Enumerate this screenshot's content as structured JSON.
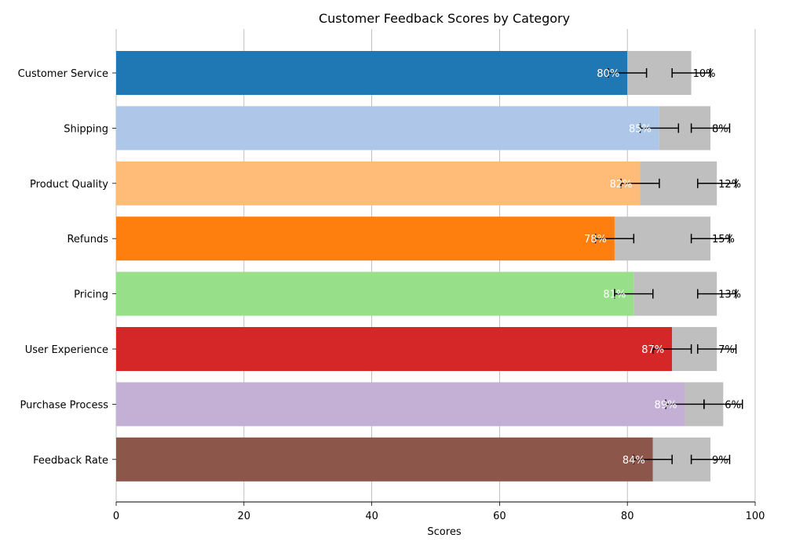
{
  "chart_data": {
    "type": "bar",
    "orientation": "horizontal",
    "stacked": true,
    "title": "Customer Feedback Scores by Category",
    "xlabel": "Scores",
    "ylabel": "",
    "xlim": [
      0,
      100
    ],
    "xticks": [
      0,
      20,
      40,
      60,
      80,
      100
    ],
    "grid": "vertical",
    "categories": [
      "Customer Service",
      "Shipping",
      "Product Quality",
      "Refunds",
      "Pricing",
      "User Experience",
      "Purchase Process",
      "Feedback Rate"
    ],
    "series": [
      {
        "values": [
          80,
          85,
          82,
          78,
          81,
          87,
          89,
          84
        ],
        "labels": [
          "80%",
          "85%",
          "82%",
          "78%",
          "81%",
          "87%",
          "89%",
          "84%"
        ],
        "colors": [
          "#1f77b4",
          "#aec7e8",
          "#ffbb78",
          "#ff7f0e",
          "#98df8a",
          "#d62728",
          "#c5b0d5",
          "#8c564b"
        ],
        "error": [
          3,
          3,
          3,
          3,
          3,
          3,
          3,
          3
        ]
      },
      {
        "values": [
          10,
          8,
          12,
          15,
          13,
          7,
          6,
          9
        ],
        "labels": [
          "10%",
          "8%",
          "12%",
          "15%",
          "13%",
          "7%",
          "6%",
          "9%"
        ],
        "color": "#bfbfbf",
        "error": [
          3,
          3,
          3,
          3,
          3,
          3,
          3,
          3
        ]
      }
    ]
  }
}
